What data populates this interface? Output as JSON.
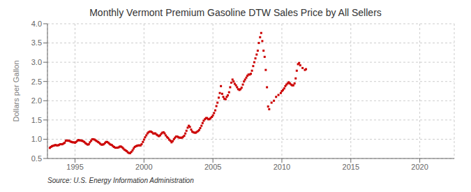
{
  "chart_data": {
    "type": "scatter",
    "title": "Monthly Vermont Premium Gasoline DTW Sales Price by All Sellers",
    "y_label": "Dollars per Gallon",
    "annotation": "Source: U.S. Energy Information Administration",
    "color": "#CC0000",
    "marker": "square",
    "grid": true,
    "xlim": [
      1993.0,
      2022.5
    ],
    "ylim": [
      0.5,
      4.0
    ],
    "xticks": [
      1995,
      2000,
      2005,
      2010,
      2015,
      2020
    ],
    "yticks": [
      {
        "value": 0.5,
        "label": "0.5"
      },
      {
        "value": 1.0,
        "label": "1.0"
      },
      {
        "value": 1.5,
        "label": "1.5"
      },
      {
        "value": 2.0,
        "label": "2.0"
      },
      {
        "value": 2.5,
        "label": "2.5"
      },
      {
        "value": 3.0,
        "label": "3.0"
      },
      {
        "value": 3.5,
        "label": "3.5"
      },
      {
        "value": 4.0,
        "label": "4.0"
      }
    ],
    "x": [
      1993.17,
      1993.25,
      1993.33,
      1993.42,
      1993.5,
      1993.58,
      1993.67,
      1993.75,
      1993.83,
      1993.92,
      1994.0,
      1994.08,
      1994.17,
      1994.25,
      1994.33,
      1994.42,
      1994.5,
      1994.58,
      1994.67,
      1994.75,
      1994.83,
      1994.92,
      1995.0,
      1995.08,
      1995.17,
      1995.25,
      1995.33,
      1995.42,
      1995.5,
      1995.58,
      1995.67,
      1995.75,
      1995.83,
      1995.92,
      1996.0,
      1996.08,
      1996.17,
      1996.25,
      1996.33,
      1996.42,
      1996.5,
      1996.58,
      1996.67,
      1996.75,
      1996.83,
      1996.92,
      1997.0,
      1997.08,
      1997.17,
      1997.25,
      1997.33,
      1997.42,
      1997.5,
      1997.58,
      1997.67,
      1997.75,
      1997.83,
      1997.92,
      1998.0,
      1998.08,
      1998.17,
      1998.25,
      1998.33,
      1998.42,
      1998.5,
      1998.58,
      1998.67,
      1998.75,
      1998.83,
      1998.92,
      1999.0,
      1999.08,
      1999.17,
      1999.25,
      1999.33,
      1999.42,
      1999.5,
      1999.58,
      1999.67,
      1999.75,
      1999.83,
      1999.92,
      2000.0,
      2000.08,
      2000.17,
      2000.25,
      2000.33,
      2000.42,
      2000.5,
      2000.58,
      2000.67,
      2000.75,
      2000.83,
      2000.92,
      2001.0,
      2001.08,
      2001.17,
      2001.25,
      2001.33,
      2001.42,
      2001.5,
      2001.58,
      2001.67,
      2001.75,
      2001.83,
      2001.92,
      2002.0,
      2002.08,
      2002.17,
      2002.25,
      2002.33,
      2002.42,
      2002.5,
      2002.58,
      2002.67,
      2002.75,
      2002.83,
      2002.92,
      2003.0,
      2003.08,
      2003.17,
      2003.25,
      2003.33,
      2003.42,
      2003.5,
      2003.58,
      2003.67,
      2003.75,
      2003.83,
      2003.92,
      2004.0,
      2004.08,
      2004.17,
      2004.25,
      2004.33,
      2004.42,
      2004.5,
      2004.58,
      2004.67,
      2004.75,
      2004.83,
      2004.92,
      2005.0,
      2005.08,
      2005.17,
      2005.25,
      2005.33,
      2005.42,
      2005.5,
      2005.58,
      2005.67,
      2005.75,
      2005.83,
      2005.92,
      2006.0,
      2006.08,
      2006.17,
      2006.25,
      2006.33,
      2006.42,
      2006.5,
      2006.58,
      2006.67,
      2006.75,
      2006.83,
      2006.92,
      2007.0,
      2007.08,
      2007.17,
      2007.25,
      2007.33,
      2007.42,
      2007.5,
      2007.58,
      2007.67,
      2007.75,
      2007.83,
      2007.92,
      2008.0,
      2008.08,
      2008.17,
      2008.25,
      2008.33,
      2008.42,
      2008.5,
      2008.58,
      2008.67,
      2008.75,
      2008.83,
      2008.92,
      2009.0,
      2009.08,
      2009.25,
      2009.42,
      2009.58,
      2009.75,
      2009.92,
      2010.0,
      2010.08,
      2010.17,
      2010.25,
      2010.33,
      2010.42,
      2010.5,
      2010.58,
      2010.67,
      2010.75,
      2010.83,
      2010.92,
      2011.0,
      2011.08,
      2011.17,
      2011.25,
      2011.33,
      2011.5,
      2011.67,
      2011.75
    ],
    "values": [
      0.775,
      0.8,
      0.82,
      0.83,
      0.84,
      0.85,
      0.84,
      0.84,
      0.85,
      0.87,
      0.87,
      0.87,
      0.89,
      0.91,
      0.96,
      0.97,
      0.96,
      0.96,
      0.94,
      0.93,
      0.92,
      0.92,
      0.91,
      0.93,
      0.96,
      0.98,
      0.97,
      0.97,
      0.96,
      0.95,
      0.93,
      0.9,
      0.88,
      0.86,
      0.87,
      0.92,
      0.96,
      1.0,
      1.0,
      0.99,
      0.97,
      0.95,
      0.93,
      0.91,
      0.88,
      0.86,
      0.86,
      0.87,
      0.9,
      0.93,
      0.93,
      0.91,
      0.88,
      0.86,
      0.85,
      0.82,
      0.8,
      0.78,
      0.78,
      0.78,
      0.79,
      0.81,
      0.81,
      0.79,
      0.76,
      0.73,
      0.71,
      0.69,
      0.66,
      0.64,
      0.64,
      0.67,
      0.71,
      0.76,
      0.8,
      0.82,
      0.83,
      0.84,
      0.84,
      0.84,
      0.87,
      0.93,
      0.99,
      1.05,
      1.1,
      1.15,
      1.18,
      1.2,
      1.2,
      1.18,
      1.15,
      1.15,
      1.15,
      1.12,
      1.1,
      1.08,
      1.1,
      1.14,
      1.17,
      1.18,
      1.15,
      1.1,
      1.06,
      1.03,
      0.99,
      0.96,
      0.92,
      0.95,
      1.0,
      1.04,
      1.07,
      1.07,
      1.05,
      1.04,
      1.04,
      1.04,
      1.06,
      1.09,
      1.15,
      1.22,
      1.3,
      1.35,
      1.32,
      1.25,
      1.2,
      1.18,
      1.17,
      1.17,
      1.19,
      1.21,
      1.24,
      1.29,
      1.35,
      1.42,
      1.48,
      1.52,
      1.55,
      1.55,
      1.52,
      1.52,
      1.55,
      1.58,
      1.62,
      1.68,
      1.75,
      1.86,
      1.95,
      2.08,
      2.2,
      2.38,
      2.18,
      2.1,
      2.05,
      2.04,
      2.1,
      2.14,
      2.22,
      2.35,
      2.47,
      2.55,
      2.5,
      2.44,
      2.4,
      2.35,
      2.3,
      2.28,
      2.3,
      2.34,
      2.42,
      2.5,
      2.55,
      2.6,
      2.65,
      2.68,
      2.68,
      2.7,
      2.78,
      2.9,
      3.0,
      3.1,
      3.2,
      3.3,
      3.5,
      3.65,
      3.76,
      3.55,
      3.3,
      3.14,
      2.8,
      2.35,
      1.85,
      1.78,
      1.95,
      2.0,
      2.1,
      2.15,
      2.2,
      2.25,
      2.28,
      2.32,
      2.38,
      2.42,
      2.45,
      2.48,
      2.45,
      2.42,
      2.4,
      2.4,
      2.45,
      2.58,
      2.78,
      2.95,
      2.98,
      2.92,
      2.85,
      2.8,
      2.82
    ]
  }
}
